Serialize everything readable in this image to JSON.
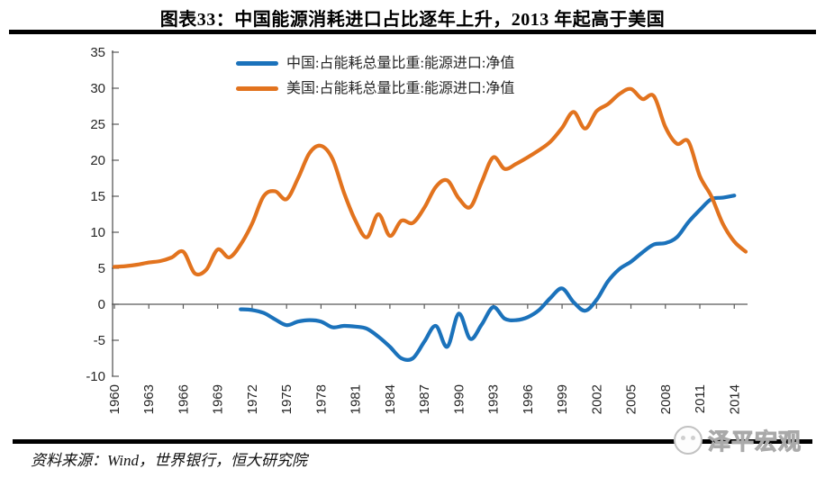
{
  "header": {
    "title": "图表33：中国能源消耗进口占比逐年上升，2013 年起高于美国"
  },
  "chart_data": {
    "type": "line",
    "title": "图表33：中国能源消耗进口占比逐年上升，2013 年起高于美国",
    "xlabel": "",
    "ylabel": "",
    "ylim": [
      -10,
      35
    ],
    "xlim": [
      1960,
      2015
    ],
    "y_ticks": [
      35,
      30,
      25,
      20,
      15,
      10,
      5,
      0,
      -5,
      -10
    ],
    "x_ticks": [
      1960,
      1963,
      1966,
      1969,
      1972,
      1975,
      1978,
      1981,
      1984,
      1987,
      1990,
      1993,
      1996,
      1999,
      2002,
      2005,
      2008,
      2011,
      2014
    ],
    "grid": false,
    "legend_position": "top-center",
    "series": [
      {
        "name": "中国:占能耗总量比重:能源进口:净值",
        "color": "#1B72BB",
        "years": [
          1971,
          1972,
          1973,
          1974,
          1975,
          1976,
          1977,
          1978,
          1979,
          1980,
          1981,
          1982,
          1983,
          1984,
          1985,
          1986,
          1987,
          1988,
          1989,
          1990,
          1991,
          1992,
          1993,
          1994,
          1995,
          1996,
          1997,
          1998,
          1999,
          2000,
          2001,
          2002,
          2003,
          2004,
          2005,
          2006,
          2007,
          2008,
          2009,
          2010,
          2011,
          2012,
          2013,
          2014
        ],
        "values": [
          -0.7,
          -0.8,
          -1.2,
          -2.1,
          -2.9,
          -2.4,
          -2.2,
          -2.4,
          -3.2,
          -3.0,
          -3.1,
          -3.4,
          -4.5,
          -5.9,
          -7.5,
          -7.5,
          -5.2,
          -3.0,
          -5.9,
          -1.3,
          -4.8,
          -2.8,
          -0.4,
          -2.0,
          -2.2,
          -1.8,
          -0.8,
          0.9,
          2.2,
          0.3,
          -0.9,
          0.6,
          3.2,
          4.9,
          5.9,
          7.2,
          8.3,
          8.5,
          9.3,
          11.4,
          13.1,
          14.6,
          14.8,
          15.1
        ]
      },
      {
        "name": "美国:占能耗总量比重:能源进口:净值",
        "color": "#E2731E",
        "years": [
          1960,
          1961,
          1962,
          1963,
          1964,
          1965,
          1966,
          1967,
          1968,
          1969,
          1970,
          1971,
          1972,
          1973,
          1974,
          1975,
          1976,
          1977,
          1978,
          1979,
          1980,
          1981,
          1982,
          1983,
          1984,
          1985,
          1986,
          1987,
          1988,
          1989,
          1990,
          1991,
          1992,
          1993,
          1994,
          1995,
          1996,
          1997,
          1998,
          1999,
          2000,
          2001,
          2002,
          2003,
          2004,
          2005,
          2006,
          2007,
          2008,
          2009,
          2010,
          2011,
          2012,
          2013,
          2014,
          2015
        ],
        "values": [
          5.2,
          5.3,
          5.5,
          5.8,
          6.0,
          6.5,
          7.3,
          4.3,
          4.8,
          7.6,
          6.5,
          8.3,
          11.2,
          15.0,
          15.7,
          14.6,
          17.5,
          21.0,
          22.0,
          20.2,
          15.5,
          11.6,
          9.3,
          12.5,
          9.5,
          11.6,
          11.3,
          13.4,
          16.3,
          17.2,
          14.7,
          13.5,
          17.0,
          20.4,
          18.8,
          19.5,
          20.4,
          21.4,
          22.6,
          24.5,
          26.7,
          24.4,
          26.8,
          27.8,
          29.2,
          29.9,
          28.5,
          28.9,
          24.6,
          22.3,
          22.6,
          17.8,
          15.0,
          11.2,
          8.7,
          7.3
        ]
      }
    ]
  },
  "footer": {
    "source": "资料来源：Wind，世界银行，恒大研究院",
    "watermark": "泽平宏观"
  }
}
